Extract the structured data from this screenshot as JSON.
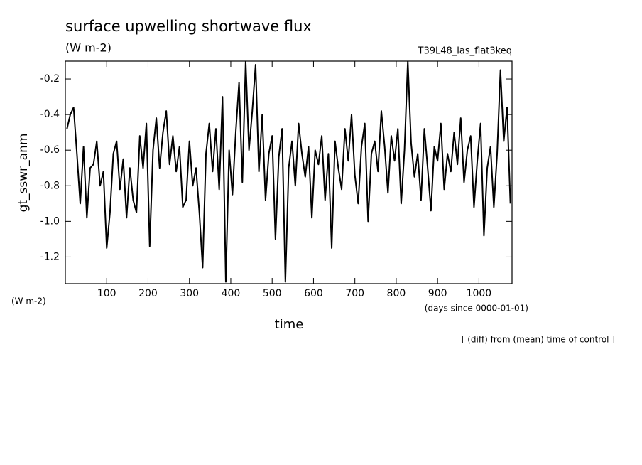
{
  "chart_data": {
    "type": "line",
    "title": "surface upwelling shortwave flux",
    "subtitle": "(W m-2)",
    "run_label": "T39L48_ias_flat3keq",
    "y_label": "gt_sswr_anm",
    "y_units": "(W m-2)",
    "x_label": "time",
    "x_units": "(days since 0000-01-01)",
    "note": "[ (diff) from (mean) time of control ]",
    "xlim": [
      0,
      1080
    ],
    "ylim": [
      -1.35,
      -0.1
    ],
    "xticks": [
      100,
      200,
      300,
      400,
      500,
      600,
      700,
      800,
      900,
      1000
    ],
    "yticks": [
      -1.2,
      {
        "value": -1,
        "label": "-1.0"
      },
      -0.8,
      -0.6,
      -0.4,
      -0.2
    ],
    "x": [
      4,
      12,
      20,
      28,
      36,
      44,
      52,
      60,
      68,
      76,
      84,
      92,
      100,
      108,
      116,
      124,
      132,
      140,
      148,
      156,
      164,
      172,
      180,
      188,
      196,
      204,
      212,
      220,
      228,
      236,
      244,
      252,
      260,
      268,
      276,
      284,
      292,
      300,
      308,
      316,
      324,
      332,
      340,
      348,
      356,
      364,
      372,
      380,
      388,
      396,
      404,
      412,
      420,
      428,
      436,
      444,
      452,
      460,
      468,
      476,
      484,
      492,
      500,
      508,
      516,
      524,
      532,
      540,
      548,
      556,
      564,
      572,
      580,
      588,
      596,
      604,
      612,
      620,
      628,
      636,
      644,
      652,
      660,
      668,
      676,
      684,
      692,
      700,
      708,
      716,
      724,
      732,
      740,
      748,
      756,
      764,
      772,
      780,
      788,
      796,
      804,
      812,
      820,
      828,
      836,
      844,
      852,
      860,
      868,
      876,
      884,
      892,
      900,
      908,
      916,
      924,
      932,
      940,
      948,
      956,
      964,
      972,
      980,
      988,
      996,
      1004,
      1012,
      1020,
      1028,
      1036,
      1044,
      1052,
      1060,
      1068,
      1076
    ],
    "series": [
      {
        "color": "#000000",
        "values": [
          -0.48,
          -0.4,
          -0.36,
          -0.62,
          -0.9,
          -0.58,
          -0.98,
          -0.7,
          -0.68,
          -0.55,
          -0.8,
          -0.72,
          -1.15,
          -0.95,
          -0.62,
          -0.55,
          -0.82,
          -0.65,
          -0.98,
          -0.7,
          -0.88,
          -0.95,
          -0.52,
          -0.7,
          -0.45,
          -1.14,
          -0.6,
          -0.42,
          -0.7,
          -0.5,
          -0.38,
          -0.68,
          -0.52,
          -0.72,
          -0.58,
          -0.92,
          -0.88,
          -0.55,
          -0.8,
          -0.7,
          -0.95,
          -1.26,
          -0.62,
          -0.45,
          -0.72,
          -0.48,
          -0.82,
          -0.3,
          -1.34,
          -0.6,
          -0.85,
          -0.5,
          -0.22,
          -0.78,
          -0.1,
          -0.6,
          -0.38,
          -0.12,
          -0.72,
          -0.4,
          -0.88,
          -0.62,
          -0.52,
          -1.1,
          -0.64,
          -0.48,
          -1.34,
          -0.7,
          -0.55,
          -0.8,
          -0.45,
          -0.62,
          -0.75,
          -0.58,
          -0.98,
          -0.6,
          -0.68,
          -0.52,
          -0.88,
          -0.62,
          -1.15,
          -0.55,
          -0.7,
          -0.82,
          -0.48,
          -0.66,
          -0.4,
          -0.74,
          -0.9,
          -0.58,
          -0.45,
          -1.0,
          -0.62,
          -0.55,
          -0.72,
          -0.38,
          -0.58,
          -0.84,
          -0.52,
          -0.66,
          -0.48,
          -0.9,
          -0.6,
          -0.1,
          -0.56,
          -0.75,
          -0.62,
          -0.88,
          -0.48,
          -0.7,
          -0.94,
          -0.58,
          -0.66,
          -0.45,
          -0.82,
          -0.62,
          -0.72,
          -0.5,
          -0.68,
          -0.42,
          -0.78,
          -0.6,
          -0.52,
          -0.92,
          -0.66,
          -0.45,
          -1.08,
          -0.7,
          -0.58,
          -0.92,
          -0.62,
          -0.15,
          -0.55,
          -0.36,
          -0.9
        ]
      }
    ]
  }
}
